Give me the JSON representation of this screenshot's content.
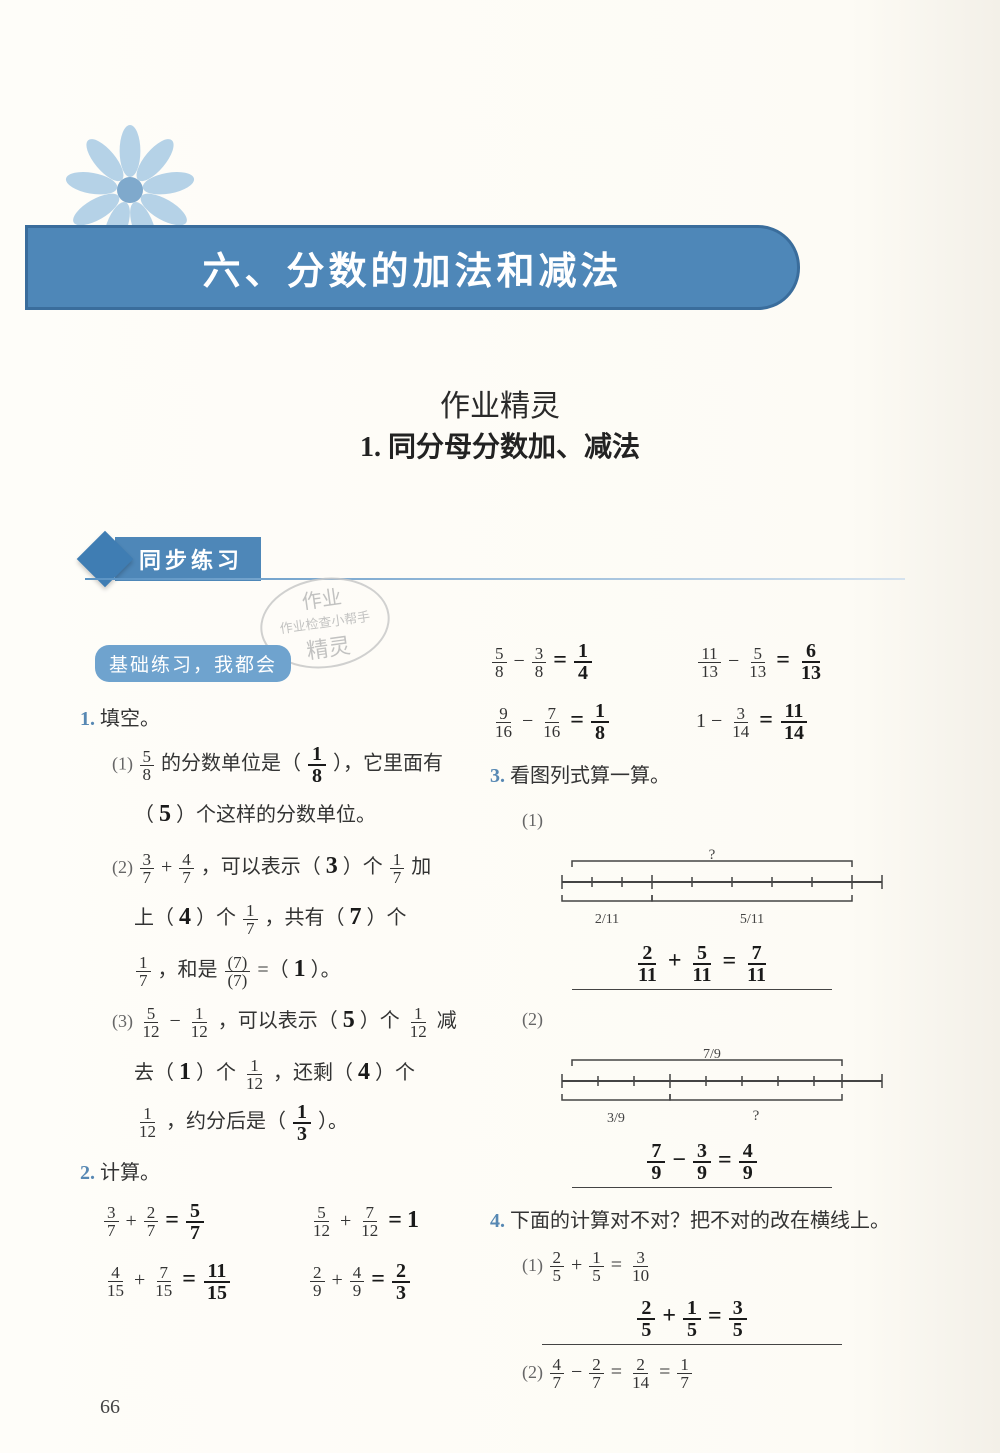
{
  "page": {
    "number": "66",
    "background_color": "#fdfbf5",
    "banner_color": "#4e87b8",
    "banner_border": "#3a6d9c",
    "pill_color": "#6fa3ce",
    "text_color": "#333"
  },
  "chapter": {
    "title": "六、分数的加法和减法"
  },
  "handwriting_header": "作业精灵",
  "section": {
    "title": "1.  同分母分数加、减法"
  },
  "sync_label": "同步练习",
  "stamp": {
    "line1": "作业",
    "line2": "作业检查小帮手",
    "line3": "精灵"
  },
  "basic_label": "基础练习，我都会",
  "q1": {
    "label": "1.",
    "title": "填空。",
    "p1_a": "(1) ",
    "p1_b": "的分数单位是（",
    "p1_c": "），它里面有",
    "p1_d": "（",
    "p1_e": "）个这样的分数单位。",
    "hw_1a_n": "1",
    "hw_1a_d": "8",
    "hw_1b": "5",
    "f_58_n": "5",
    "f_58_d": "8",
    "p2_a": "(2) ",
    "p2_b": "，可以表示（",
    "p2_c": "）个",
    "p2_d": "加",
    "p2_e": "上（",
    "p2_f": "）个",
    "p2_g": "，共有（",
    "p2_h": "）个",
    "p2_i": "，和是",
    "p2_j": "=（",
    "p2_k": "）。",
    "f_37_n": "3",
    "f_37_d": "7",
    "f_47_n": "4",
    "f_47_d": "7",
    "f_17_n": "1",
    "f_17_d": "7",
    "hw_2a": "3",
    "hw_2b": "4",
    "hw_2c": "7",
    "hw_2d_n": "(7)",
    "hw_2d_d": "(7)",
    "hw_2e": "1",
    "p3_a": "(3) ",
    "p3_b": "，可以表示（",
    "p3_c": "）个",
    "p3_d": "减",
    "p3_e": "去（",
    "p3_f": "）个",
    "p3_g": "，还剩（",
    "p3_h": "）个",
    "p3_i": "，约分后是（",
    "p3_j": "）。",
    "f_512_n": "5",
    "f_512_d": "12",
    "f_112_n": "1",
    "f_112_d": "12",
    "hw_3a": "5",
    "hw_3b": "1",
    "hw_3c": "4",
    "hw_3d_n": "1",
    "hw_3d_d": "3"
  },
  "q2": {
    "label": "2.",
    "title": "计算。",
    "rows": [
      {
        "l": {
          "a_n": "3",
          "a_d": "7",
          "op": "+",
          "b_n": "2",
          "b_d": "7",
          "eq": "=",
          "r_n": "5",
          "r_d": "7"
        },
        "r": {
          "a_n": "5",
          "a_d": "12",
          "op": "+",
          "b_n": "7",
          "b_d": "12",
          "eq": "=",
          "rtxt": "1"
        }
      },
      {
        "l": {
          "a_n": "4",
          "a_d": "15",
          "op": "+",
          "b_n": "7",
          "b_d": "15",
          "eq": "=",
          "r_n": "11",
          "r_d": "15"
        },
        "r": {
          "a_n": "2",
          "a_d": "9",
          "op": "+",
          "b_n": "4",
          "b_d": "9",
          "eq": "=",
          "r_n": "2",
          "r_d": "3"
        }
      }
    ]
  },
  "q2b": {
    "rows": [
      {
        "l": {
          "a_n": "5",
          "a_d": "8",
          "op": "−",
          "b_n": "3",
          "b_d": "8",
          "eq": "=",
          "r_n": "1",
          "r_d": "4"
        },
        "r": {
          "a_n": "11",
          "a_d": "13",
          "op": "−",
          "b_n": "5",
          "b_d": "13",
          "eq": "=",
          "r_n": "6",
          "r_d": "13"
        }
      },
      {
        "l": {
          "a_n": "9",
          "a_d": "16",
          "op": "−",
          "b_n": "7",
          "b_d": "16",
          "eq": "=",
          "r_n": "1",
          "r_d": "8"
        },
        "r": {
          "atxt": "1",
          "op": "−",
          "b_n": "3",
          "b_d": "14",
          "eq": "=",
          "r_n": "11",
          "r_d": "14"
        }
      }
    ]
  },
  "q3": {
    "label": "3.",
    "title": "看图列式算一算。",
    "d1": {
      "sub": "(1)",
      "top_label": "?",
      "left_n": "2",
      "left_d": "11",
      "right_n": "5",
      "right_d": "11",
      "ans": {
        "a_n": "2",
        "a_d": "11",
        "op": "+",
        "b_n": "5",
        "b_d": "11",
        "eq": "=",
        "r_n": "7",
        "r_d": "11"
      }
    },
    "d2": {
      "sub": "(2)",
      "top_n": "7",
      "top_d": "9",
      "left_n": "3",
      "left_d": "9",
      "right_label": "?",
      "ans": {
        "a_n": "7",
        "a_d": "9",
        "op": "−",
        "b_n": "3",
        "b_d": "9",
        "eq": "=",
        "r_n": "4",
        "r_d": "9"
      }
    }
  },
  "q4": {
    "label": "4.",
    "title": "下面的计算对不对？把不对的改在横线上。",
    "p1": {
      "sub": "(1) ",
      "a_n": "2",
      "a_d": "5",
      "op": "+",
      "b_n": "1",
      "b_d": "5",
      "eq": "=",
      "r_n": "3",
      "r_d": "10",
      "ans": {
        "a_n": "2",
        "a_d": "5",
        "op": "+",
        "b_n": "1",
        "b_d": "5",
        "eq": "=",
        "r_n": "3",
        "r_d": "5"
      }
    },
    "p2": {
      "sub": "(2) ",
      "a_n": "4",
      "a_d": "7",
      "op": "−",
      "b_n": "2",
      "b_d": "7",
      "eq": "=",
      "r_n": "2",
      "r_d": "14",
      "eq2": "=",
      "r2_n": "1",
      "r2_d": "7"
    }
  }
}
